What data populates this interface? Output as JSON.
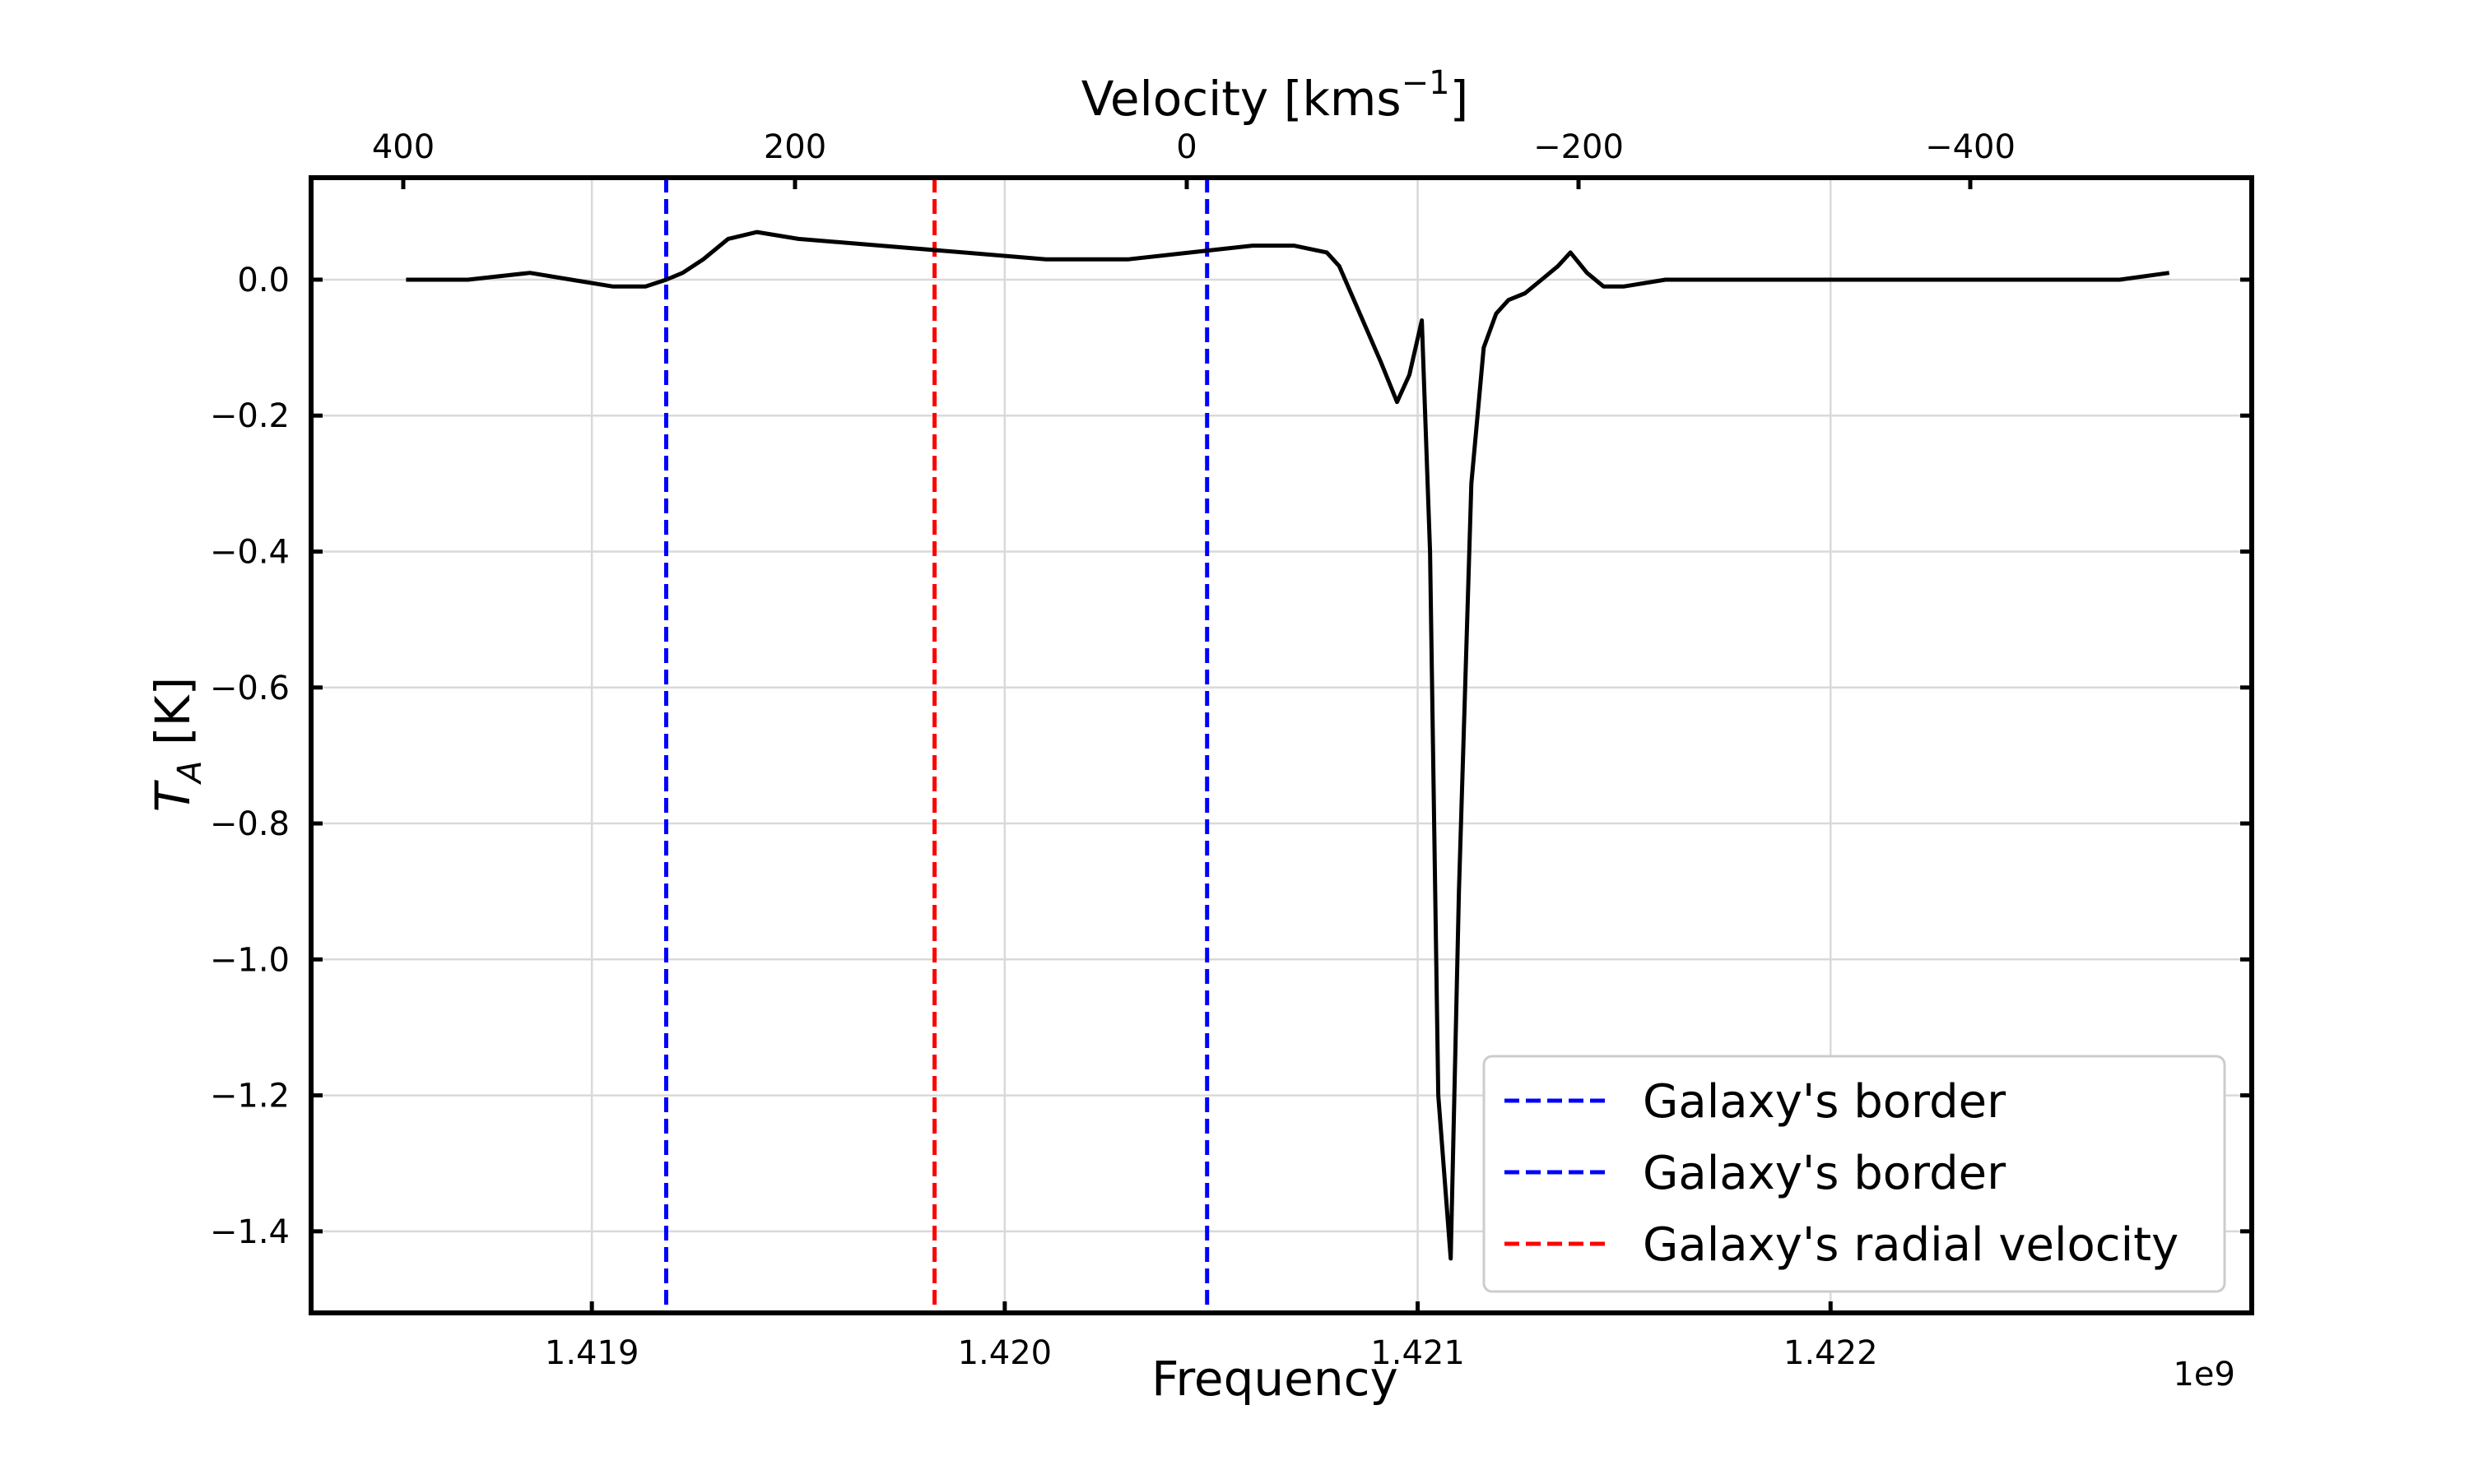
{
  "chart_data": {
    "type": "line",
    "xlabel": "Frequency",
    "x_offset_label": "1e9",
    "x2label_main": "Velocity [kms",
    "x2label_sup": "−1",
    "x2label_end": "]",
    "ylabel_main": "T",
    "ylabel_sub": "A",
    "ylabel_end": " [K]",
    "xlim": [
      1.41832,
      1.42302
    ],
    "ylim": [
      -1.52,
      0.15
    ],
    "x_ticks": [
      1.419,
      1.42,
      1.421,
      1.422
    ],
    "x_tick_labels": [
      "1.419",
      "1.420",
      "1.421",
      "1.422"
    ],
    "y_ticks": [
      0.0,
      -0.2,
      -0.4,
      -0.6,
      -0.8,
      -1.0,
      -1.2,
      -1.4
    ],
    "y_tick_labels": [
      "0.0",
      "−0.2",
      "−0.4",
      "−0.6",
      "−0.8",
      "−1.0",
      "−1.2",
      "−1.4"
    ],
    "x2_ticks": [
      400,
      200,
      0,
      -200,
      -400
    ],
    "x2_tick_labels": [
      "400",
      "200",
      "0",
      "−200",
      "−400"
    ],
    "grid": true,
    "legend_position": "lower-right",
    "series": [
      {
        "color": "#000000",
        "style": "solid",
        "x": [
          1.41855,
          1.4187,
          1.41885,
          1.41895,
          1.41905,
          1.41913,
          1.41918,
          1.41922,
          1.41927,
          1.41933,
          1.4194,
          1.4195,
          1.4197,
          1.4199,
          1.4201,
          1.4203,
          1.42045,
          1.4206,
          1.4207,
          1.42078,
          1.42081,
          1.42091,
          1.42095,
          1.42098,
          1.42101,
          1.42103,
          1.42105,
          1.42108,
          1.4211,
          1.42113,
          1.42116,
          1.42119,
          1.42122,
          1.42126,
          1.4213,
          1.42134,
          1.42137,
          1.42141,
          1.42145,
          1.4215,
          1.4216,
          1.4219,
          1.4222,
          1.4225,
          1.4227,
          1.42282
        ],
        "y": [
          0.0,
          0.0,
          0.01,
          0.0,
          -0.01,
          -0.01,
          0.0,
          0.01,
          0.03,
          0.06,
          0.07,
          0.06,
          0.05,
          0.04,
          0.03,
          0.03,
          0.04,
          0.05,
          0.05,
          0.04,
          0.02,
          -0.12,
          -0.18,
          -0.14,
          -0.06,
          -0.4,
          -1.2,
          -1.44,
          -0.9,
          -0.3,
          -0.1,
          -0.05,
          -0.03,
          -0.02,
          0.0,
          0.02,
          0.04,
          0.01,
          -0.01,
          -0.01,
          0.0,
          0.0,
          0.0,
          0.0,
          0.0,
          0.01
        ]
      }
    ],
    "vlines": [
      {
        "name": "Galaxy's border",
        "x": 1.41918,
        "color": "#0000ff",
        "style": "dashed"
      },
      {
        "name": "Galaxy's border",
        "x": 1.42049,
        "color": "#0000ff",
        "style": "dashed"
      },
      {
        "name": "Galaxy's radial velocity",
        "x": 1.41983,
        "color": "#ff0000",
        "style": "dashed"
      }
    ]
  }
}
